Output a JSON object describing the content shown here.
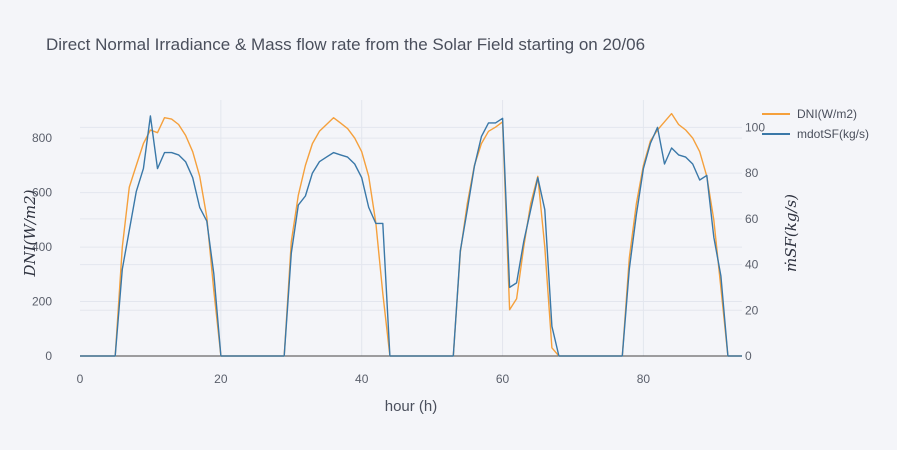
{
  "chart_data": {
    "type": "line",
    "title": "Direct Normal Irradiance & Mass flow rate from the Solar Field starting on 20/06",
    "xlabel": "hour (h)",
    "ylabel_left": "DNI(W/m2)",
    "ylabel_right": "ṁSF(kg/s)",
    "xlim": [
      0,
      94
    ],
    "ylim_left": [
      0,
      940
    ],
    "ylim_right": [
      0,
      112
    ],
    "x_ticks": [
      0,
      20,
      40,
      60,
      80
    ],
    "y_left_ticks": [
      0,
      200,
      400,
      600,
      800
    ],
    "y_right_ticks": [
      0,
      20,
      40,
      60,
      80,
      100
    ],
    "legend_position": "top-right",
    "grid": true,
    "colors": {
      "dni": "#f5a03c",
      "mdot": "#3a78a8",
      "background": "#f4f5f9"
    },
    "series": [
      {
        "name": "DNI(W/m2)",
        "axis": "left",
        "x": [
          0,
          1,
          2,
          3,
          4,
          5,
          6,
          7,
          8,
          9,
          10,
          11,
          12,
          13,
          14,
          15,
          16,
          17,
          18,
          19,
          20,
          21,
          22,
          23,
          24,
          25,
          26,
          27,
          28,
          29,
          30,
          31,
          32,
          33,
          34,
          35,
          36,
          37,
          38,
          39,
          40,
          41,
          42,
          43,
          44,
          45,
          46,
          47,
          48,
          49,
          50,
          51,
          52,
          53,
          54,
          55,
          56,
          57,
          58,
          59,
          60,
          61,
          62,
          63,
          64,
          65,
          66,
          67,
          68,
          69,
          70,
          71,
          72,
          73,
          74,
          75,
          76,
          77,
          78,
          79,
          80,
          81,
          82,
          83,
          84,
          85,
          86,
          87,
          88,
          89,
          90,
          91,
          92,
          93,
          94
        ],
        "values": [
          0,
          0,
          0,
          0,
          0,
          0,
          400,
          620,
          700,
          780,
          830,
          820,
          875,
          870,
          850,
          810,
          750,
          660,
          510,
          240,
          0,
          0,
          0,
          0,
          0,
          0,
          0,
          0,
          0,
          0,
          420,
          590,
          700,
          780,
          825,
          850,
          875,
          855,
          835,
          800,
          750,
          660,
          490,
          230,
          0,
          0,
          0,
          0,
          0,
          0,
          0,
          0,
          0,
          0,
          380,
          560,
          700,
          780,
          825,
          840,
          860,
          170,
          210,
          400,
          560,
          660,
          400,
          30,
          0,
          0,
          0,
          0,
          0,
          0,
          0,
          0,
          0,
          0,
          360,
          560,
          700,
          790,
          830,
          860,
          890,
          850,
          830,
          800,
          750,
          660,
          500,
          250,
          0,
          0,
          0
        ]
      },
      {
        "name": "mdotSF(kg/s)",
        "axis": "right",
        "x": [
          0,
          1,
          2,
          3,
          4,
          5,
          6,
          7,
          8,
          9,
          10,
          11,
          12,
          13,
          14,
          15,
          16,
          17,
          18,
          19,
          20,
          21,
          22,
          23,
          24,
          25,
          26,
          27,
          28,
          29,
          30,
          31,
          32,
          33,
          34,
          35,
          36,
          37,
          38,
          39,
          40,
          41,
          42,
          43,
          44,
          45,
          46,
          47,
          48,
          49,
          50,
          51,
          52,
          53,
          54,
          55,
          56,
          57,
          58,
          59,
          60,
          61,
          62,
          63,
          64,
          65,
          66,
          67,
          68,
          69,
          70,
          71,
          72,
          73,
          74,
          75,
          76,
          77,
          78,
          79,
          80,
          81,
          82,
          83,
          84,
          85,
          86,
          87,
          88,
          89,
          90,
          91,
          92,
          93,
          94
        ],
        "values": [
          0,
          0,
          0,
          0,
          0,
          0,
          38,
          55,
          72,
          82,
          105,
          82,
          89,
          89,
          88,
          85,
          78,
          65,
          59,
          36,
          0,
          0,
          0,
          0,
          0,
          0,
          0,
          0,
          0,
          0,
          45,
          66,
          70,
          80,
          85,
          87,
          89,
          88,
          87,
          84,
          78,
          65,
          58,
          58,
          0,
          0,
          0,
          0,
          0,
          0,
          0,
          0,
          0,
          0,
          46,
          64,
          83,
          96,
          102,
          102,
          104,
          30,
          32,
          50,
          64,
          78,
          64,
          13,
          0,
          0,
          0,
          0,
          0,
          0,
          0,
          0,
          0,
          0,
          38,
          62,
          82,
          93,
          100,
          84,
          91,
          88,
          87,
          84,
          77,
          79,
          52,
          35,
          0,
          0,
          0
        ]
      }
    ]
  }
}
